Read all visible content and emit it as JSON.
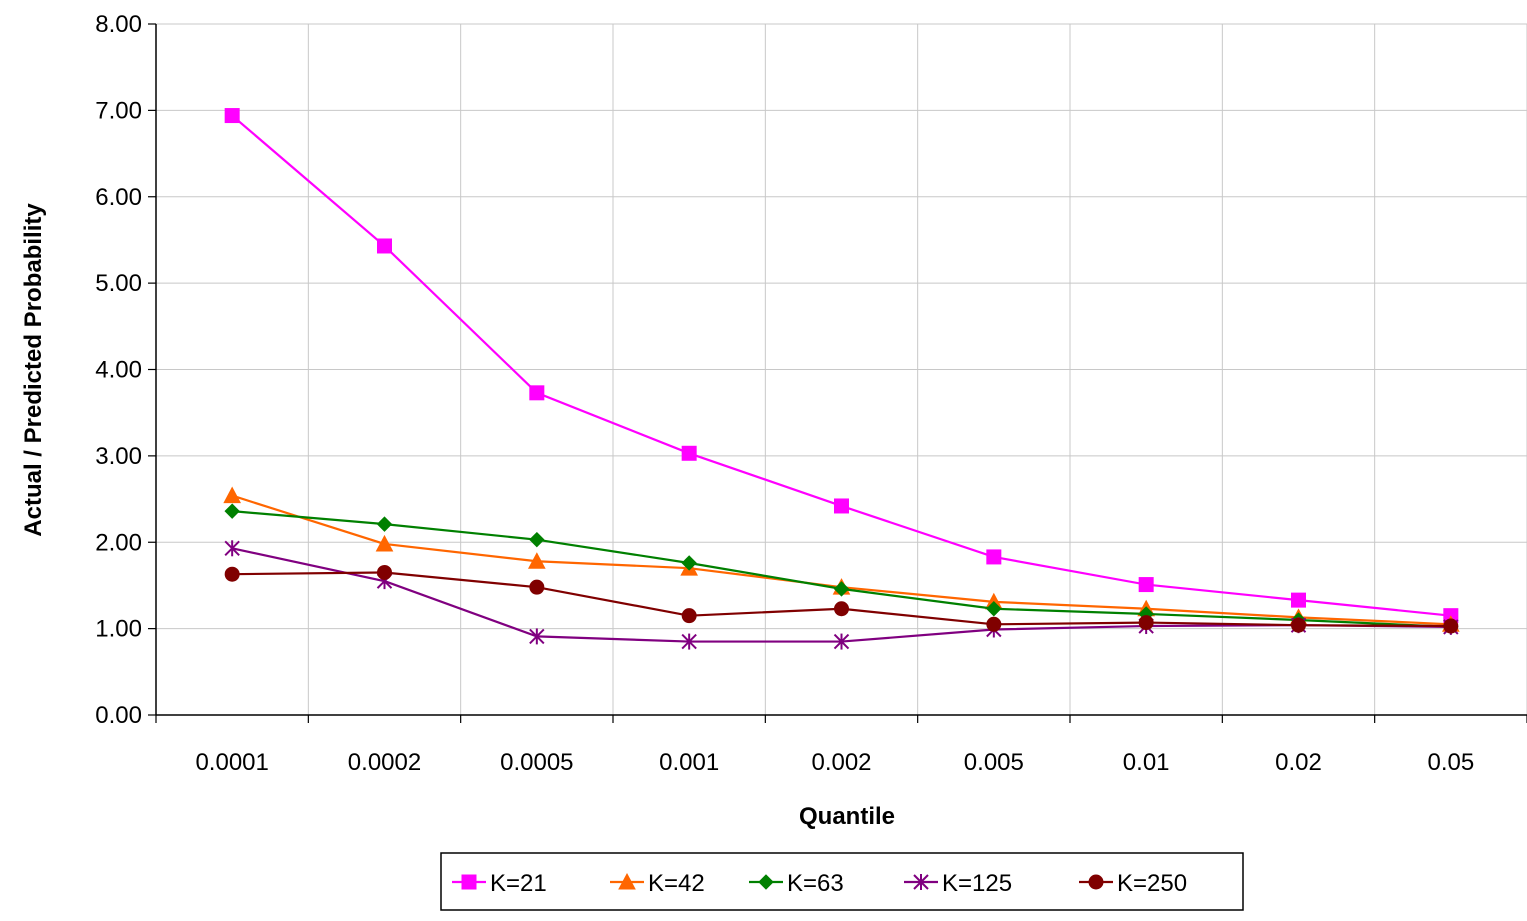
{
  "chart_data": {
    "type": "line",
    "title": "",
    "xlabel": "Quantile",
    "ylabel": "Actual / Predicted Probability",
    "categories": [
      "0.0001",
      "0.0002",
      "0.0005",
      "0.001",
      "0.002",
      "0.005",
      "0.01",
      "0.02",
      "0.05"
    ],
    "ylim": [
      0,
      8
    ],
    "yticks": [
      "0.00",
      "1.00",
      "2.00",
      "3.00",
      "4.00",
      "5.00",
      "6.00",
      "7.00",
      "8.00"
    ],
    "grid": true,
    "legend_position": "bottom",
    "series": [
      {
        "name": "K=21",
        "color": "#ff00ff",
        "marker": "square",
        "values": [
          6.94,
          5.43,
          3.73,
          3.03,
          2.42,
          1.83,
          1.51,
          1.33,
          1.15
        ]
      },
      {
        "name": "K=42",
        "color": "#ff6600",
        "marker": "triangle",
        "values": [
          2.54,
          1.98,
          1.78,
          1.7,
          1.48,
          1.31,
          1.23,
          1.13,
          1.05
        ]
      },
      {
        "name": "K=63",
        "color": "#008000",
        "marker": "diamond",
        "values": [
          2.36,
          2.21,
          2.03,
          1.76,
          1.46,
          1.23,
          1.17,
          1.1,
          1.02
        ]
      },
      {
        "name": "K=125",
        "color": "#800080",
        "marker": "star",
        "values": [
          1.93,
          1.55,
          0.91,
          0.85,
          0.85,
          0.99,
          1.03,
          1.04,
          1.02
        ]
      },
      {
        "name": "K=250",
        "color": "#800000",
        "marker": "circle",
        "values": [
          1.63,
          1.65,
          1.48,
          1.15,
          1.23,
          1.05,
          1.07,
          1.04,
          1.03
        ]
      }
    ]
  }
}
